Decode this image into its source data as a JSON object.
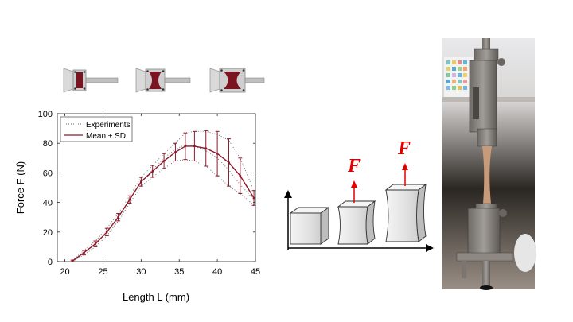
{
  "chart_data": {
    "type": "line",
    "xlabel": "Length L (mm)",
    "ylabel": "Force F (N)",
    "xlim": [
      19,
      45
    ],
    "ylim": [
      0,
      100
    ],
    "xticks": [
      "20",
      "25",
      "30",
      "35",
      "40",
      "45"
    ],
    "yticks": [
      "0",
      "20",
      "40",
      "60",
      "80",
      "100"
    ],
    "grid": false,
    "legend_position": "top-left",
    "series": [
      {
        "name": "Mean ± SD",
        "color": "#8b1a2c",
        "x": [
          21,
          22.5,
          24,
          25.5,
          27,
          28.5,
          30,
          31.5,
          33,
          34.5,
          35.8,
          37,
          38.5,
          40,
          41.5,
          43,
          44.8
        ],
        "y": [
          0.5,
          6,
          12,
          20,
          30,
          42,
          54,
          61,
          68,
          74,
          78,
          78,
          76.5,
          73,
          67,
          58,
          43
        ],
        "sd": [
          0.5,
          1.5,
          2,
          2.5,
          2.5,
          2.5,
          3,
          4,
          5,
          6,
          9,
          10,
          12,
          15,
          16,
          12,
          5
        ]
      },
      {
        "name": "Experiments",
        "color": "#666666",
        "style": "dotted",
        "curves": [
          {
            "x": [
              21,
              22.5,
              24,
              25.5,
              27,
              28.5,
              30,
              31.5,
              33,
              34.5,
              35.8,
              37,
              38.5,
              40,
              41.5,
              43,
              44.8
            ],
            "y": [
              1,
              7.5,
              14,
              22.5,
              32.5,
              44.5,
              57,
              65,
              73,
              80,
              87,
              88,
              88,
              86,
              82,
              70,
              48
            ]
          },
          {
            "x": [
              21,
              22.5,
              24,
              25.5,
              27,
              28.5,
              30,
              31.5,
              33,
              34.5,
              35.8,
              37,
              38.5,
              40,
              41.5,
              43,
              44.8
            ],
            "y": [
              0.2,
              4.5,
              10,
              17.5,
              27.5,
              39.5,
              51,
              57,
              63,
              68,
              69,
              68,
              64.5,
              58,
              51,
              46,
              38
            ]
          },
          {
            "x": [
              21,
              22.5,
              24,
              25.5,
              27,
              28.5,
              30,
              31.5,
              33,
              34.5,
              35.8,
              37,
              38.5,
              40,
              41.5,
              43,
              44.8
            ],
            "y": [
              0.5,
              6,
              12,
              20,
              30,
              42,
              54,
              62,
              70,
              76,
              79,
              78,
              75,
              70,
              62,
              52,
              42
            ]
          }
        ]
      }
    ]
  },
  "schematic": {
    "force_label_1": "F",
    "force_label_2": "F",
    "force_arrow_color": "#e00000"
  },
  "photo": {
    "description_color_machine": "#8a8580"
  }
}
